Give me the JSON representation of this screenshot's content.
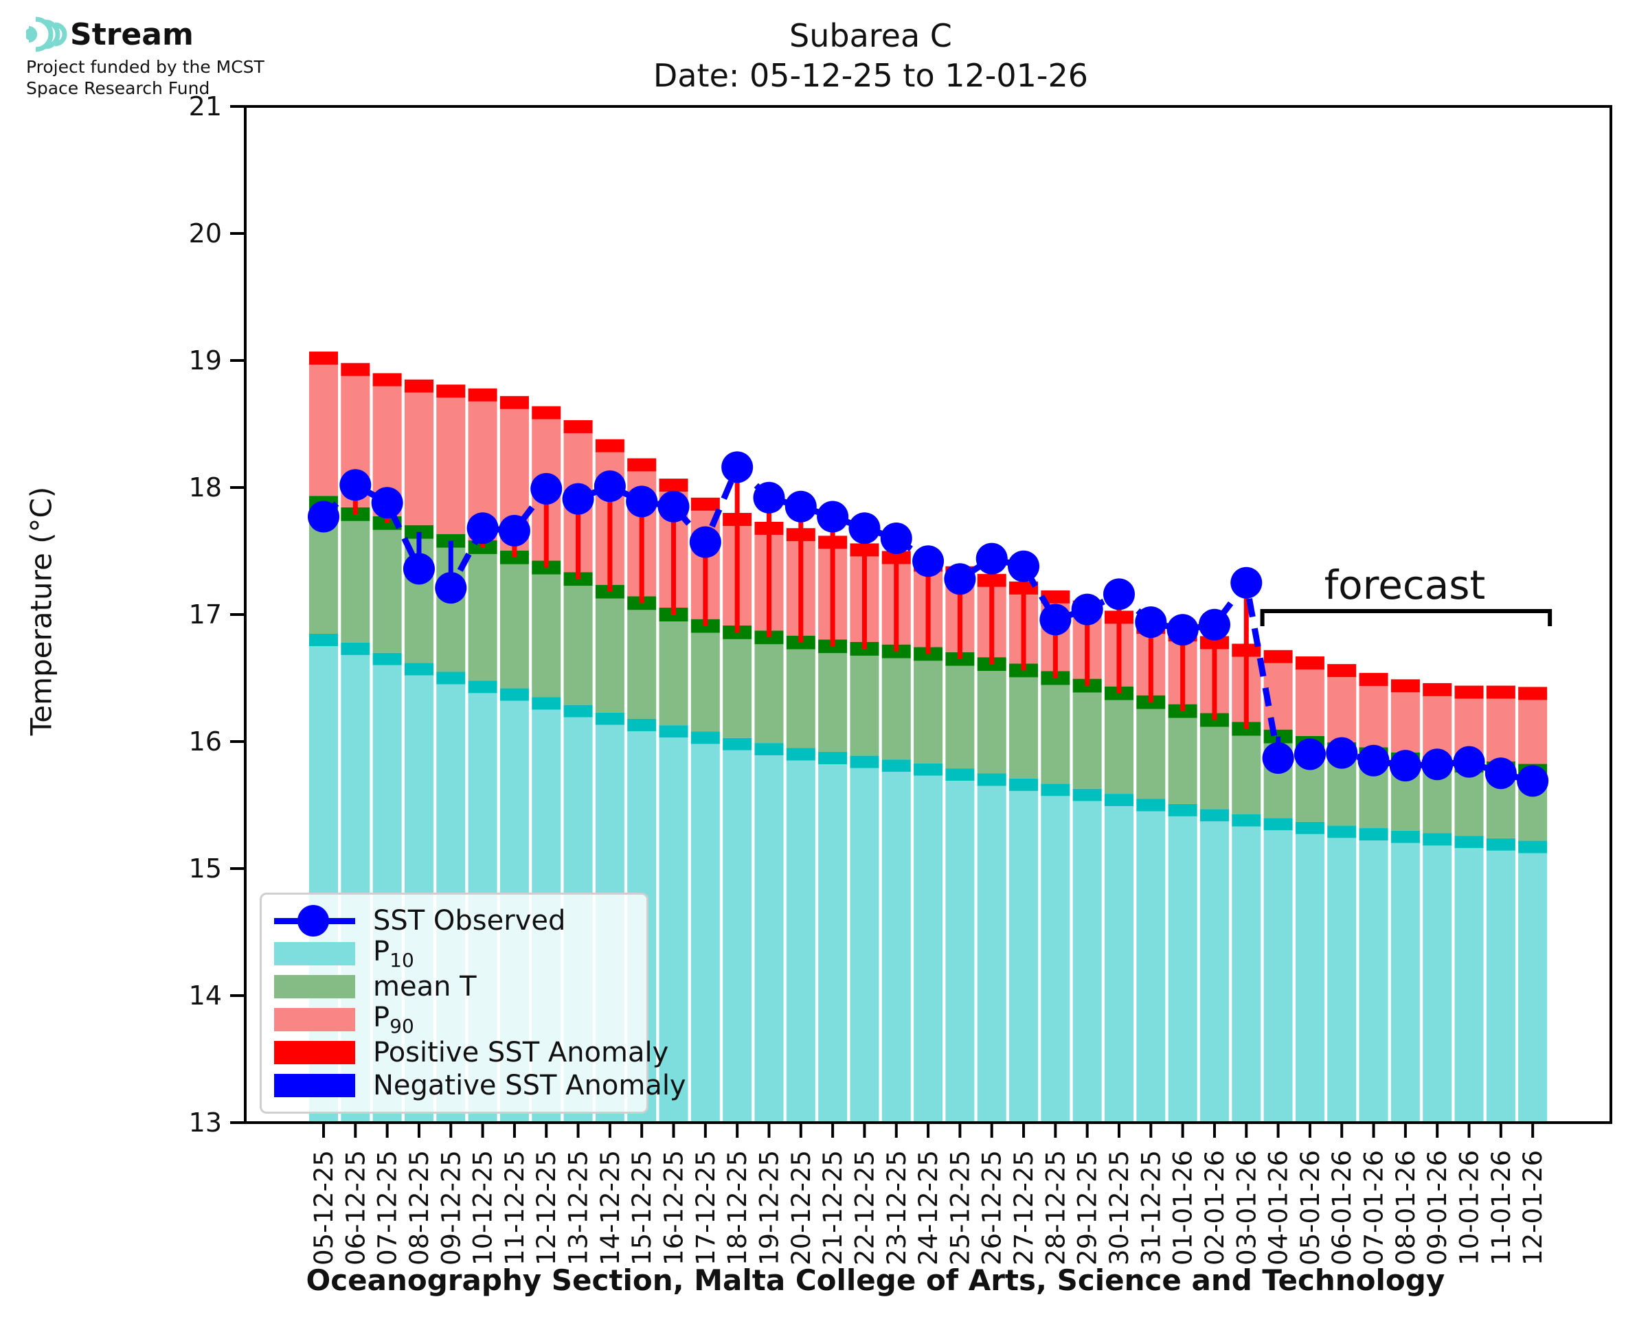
{
  "header": {
    "logo_title": "Stream",
    "logo_subtitle_line1": "Project funded by the MCST",
    "logo_subtitle_line2": "Space Research Fund",
    "logo_color": "#7bd9d0"
  },
  "title": {
    "line1": "Subarea C",
    "line2": "Date: 05-12-25 to 12-01-26"
  },
  "axis": {
    "ylabel": "Temperature (°C)",
    "ymin": 13,
    "ymax": 21,
    "yticks": [
      13,
      14,
      15,
      16,
      17,
      18,
      19,
      20,
      21
    ]
  },
  "footer": {
    "xlabel": "Oceanography Section, Malta College of Arts, Science and Technology"
  },
  "legend_items": [
    {
      "label": "SST Observed",
      "sub": "",
      "kind": "line-dot",
      "color": "#0000ff"
    },
    {
      "label": "P",
      "sub": "10",
      "kind": "patch",
      "color": "#7edede"
    },
    {
      "label": "mean T",
      "sub": "",
      "kind": "patch",
      "color": "#85bc85"
    },
    {
      "label": "P",
      "sub": "90",
      "kind": "patch",
      "color": "#fa8585"
    },
    {
      "label": "Positive SST Anomaly",
      "sub": "",
      "kind": "patch",
      "color": "#ff0000"
    },
    {
      "label": "Negative SST Anomaly",
      "sub": "",
      "kind": "patch",
      "color": "#0000ff"
    }
  ],
  "chart_data": {
    "type": "bar",
    "title": "Subarea C — Date: 05-12-25 to 12-01-26",
    "xlabel": "Oceanography Section, Malta College of Arts, Science and Technology",
    "ylabel": "Temperature (°C)",
    "ylim": [
      13,
      21
    ],
    "grid": false,
    "legend_position": "lower-left",
    "categories": [
      "05-12-25",
      "06-12-25",
      "07-12-25",
      "08-12-25",
      "09-12-25",
      "10-12-25",
      "11-12-25",
      "12-12-25",
      "13-12-25",
      "14-12-25",
      "15-12-25",
      "16-12-25",
      "17-12-25",
      "18-12-25",
      "19-12-25",
      "20-12-25",
      "21-12-25",
      "22-12-25",
      "23-12-25",
      "24-12-25",
      "25-12-25",
      "26-12-25",
      "27-12-25",
      "28-12-25",
      "29-12-25",
      "30-12-25",
      "31-12-25",
      "01-01-26",
      "02-01-26",
      "03-01-26",
      "04-01-26",
      "05-01-26",
      "06-01-26",
      "07-01-26",
      "08-01-26",
      "09-01-26",
      "10-01-26",
      "11-01-26",
      "12-01-26"
    ],
    "series": [
      {
        "name": "P10",
        "type": "bar",
        "color": "#7edede",
        "cap_color": "#00bfbf",
        "values": [
          16.8,
          16.73,
          16.65,
          16.57,
          16.5,
          16.43,
          16.37,
          16.3,
          16.24,
          16.18,
          16.13,
          16.08,
          16.03,
          15.98,
          15.94,
          15.9,
          15.87,
          15.84,
          15.81,
          15.78,
          15.74,
          15.7,
          15.66,
          15.62,
          15.58,
          15.54,
          15.5,
          15.46,
          15.42,
          15.38,
          15.35,
          15.32,
          15.29,
          15.27,
          15.25,
          15.23,
          15.21,
          15.19,
          15.17
        ]
      },
      {
        "name": "mean T",
        "type": "bar",
        "color": "#85bc85",
        "cap_color": "#008000",
        "values": [
          17.88,
          17.79,
          17.72,
          17.65,
          17.58,
          17.53,
          17.45,
          17.37,
          17.28,
          17.18,
          17.09,
          17.0,
          16.91,
          16.86,
          16.82,
          16.78,
          16.75,
          16.73,
          16.71,
          16.69,
          16.65,
          16.61,
          16.56,
          16.5,
          16.44,
          16.38,
          16.31,
          16.24,
          16.17,
          16.1,
          16.04,
          15.99,
          15.94,
          15.9,
          15.86,
          15.83,
          15.81,
          15.79,
          15.77
        ]
      },
      {
        "name": "P90",
        "type": "bar",
        "color": "#fa8585",
        "cap_color": "#ff0000",
        "values": [
          19.07,
          18.98,
          18.9,
          18.85,
          18.81,
          18.78,
          18.72,
          18.64,
          18.53,
          18.38,
          18.23,
          18.07,
          17.92,
          17.8,
          17.73,
          17.68,
          17.62,
          17.56,
          17.5,
          17.44,
          17.38,
          17.32,
          17.26,
          17.19,
          17.11,
          17.03,
          16.95,
          16.89,
          16.83,
          16.77,
          16.72,
          16.67,
          16.61,
          16.54,
          16.49,
          16.46,
          16.44,
          16.44,
          16.43
        ]
      },
      {
        "name": "SST Observed",
        "type": "line",
        "color": "#0000ff",
        "dashed": true,
        "marker": "circle",
        "values": [
          17.77,
          18.02,
          17.88,
          17.36,
          17.21,
          17.68,
          17.66,
          17.99,
          17.91,
          18.01,
          17.89,
          17.85,
          17.57,
          18.16,
          17.92,
          17.85,
          17.77,
          17.68,
          17.6,
          17.42,
          17.28,
          17.44,
          17.38,
          16.96,
          17.04,
          17.16,
          16.94,
          16.88,
          16.92,
          17.25,
          15.87,
          15.9,
          15.91,
          15.85,
          15.81,
          15.82,
          15.84,
          15.75,
          15.69
        ]
      },
      {
        "name": "Positive SST Anomaly",
        "type": "anomaly-positive",
        "color": "#ff0000"
      },
      {
        "name": "Negative SST Anomaly",
        "type": "anomaly-negative",
        "color": "#0000ff"
      }
    ],
    "forecast": {
      "label": "forecast",
      "start_category": "04-01-26",
      "end_category": "12-01-26"
    }
  }
}
